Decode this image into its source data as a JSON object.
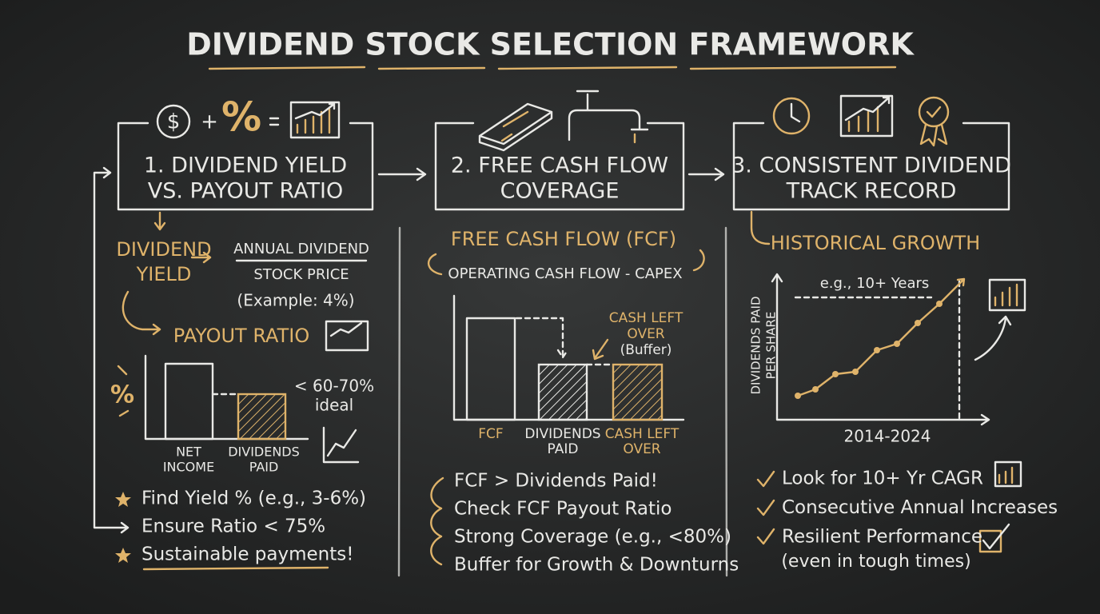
{
  "title": "DIVIDEND STOCK SELECTION FRAMEWORK",
  "icons": {
    "dollar": "$",
    "plus": "+",
    "percent": "%"
  },
  "step1": {
    "heading": [
      "1. DIVIDEND YIELD",
      "VS. PAYOUT RATIO"
    ],
    "yield_label": [
      "DIVIDEND",
      "YIELD"
    ],
    "numerator": "ANNUAL DIVIDEND",
    "denominator": "STOCK PRICE",
    "example": "(Example: 4%)",
    "payout_label": "PAYOUT RATIO",
    "percent_icon": "%",
    "target": [
      "< 60-70%",
      "ideal"
    ],
    "bars": [
      [
        "NET",
        "INCOME"
      ],
      [
        "DIVIDENDS",
        "PAID"
      ]
    ],
    "bullets": [
      "Find Yield % (e.g., 3-6%)",
      "Ensure Ratio < 75%",
      "Sustainable payments!"
    ]
  },
  "step2": {
    "heading": [
      "2. FREE CASH FLOW",
      "COVERAGE"
    ],
    "definition": "FREE CASH FLOW (FCF)",
    "formula": "OPERATING CASH FLOW - CAPEX",
    "buffer_note": [
      "CASH LEFT",
      "OVER",
      "(Buffer)"
    ],
    "bars": [
      [
        "FCF"
      ],
      [
        "DIVIDENDS",
        "PAID"
      ],
      [
        "CASH LEFT",
        "OVER"
      ]
    ],
    "bullets": [
      "FCF > Dividends Paid!",
      "Check FCF Payout Ratio",
      "Strong Coverage (e.g., <80%)",
      "Buffer for Growth & Downturns"
    ]
  },
  "step3": {
    "heading": [
      "3. CONSISTENT DIVIDEND",
      "TRACK RECORD"
    ],
    "growth_label": "HISTORICAL GROWTH",
    "y_label": [
      "DIVIDENDS PAID",
      "PER SHARE"
    ],
    "span_note": "e.g., 10+ Years",
    "period": "2014-2024",
    "bullets": [
      "Look for 10+ Yr CAGR",
      "Consecutive Annual Increases",
      "Resilient Performance",
      "(even in tough times)"
    ]
  }
}
